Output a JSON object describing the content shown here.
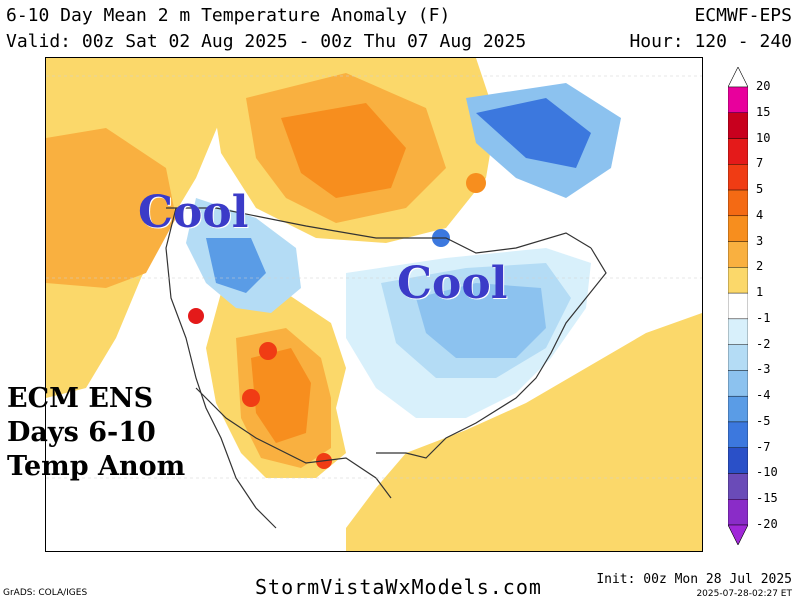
{
  "header": {
    "title": "6-10 Day Mean 2 m Temperature Anomaly (F)",
    "valid": "Valid: 00z Sat 02 Aug 2025 - 00z Thu 07 Aug 2025",
    "model": "ECMWF-EPS",
    "hour": "Hour: 120 - 240"
  },
  "annotations": {
    "cool_west": "Cool",
    "cool_east": "Cool",
    "label_line1": "ECM ENS",
    "label_line2": "Days 6-10",
    "label_line3": "Temp Anom"
  },
  "legend": {
    "labels": [
      "20",
      "15",
      "10",
      "7",
      "5",
      "4",
      "3",
      "2",
      "1",
      "-1",
      "-2",
      "-3",
      "-4",
      "-5",
      "-7",
      "-10",
      "-15",
      "-20"
    ],
    "colors": [
      "#e8009c",
      "#c8001e",
      "#e41a1a",
      "#f03c14",
      "#f46a14",
      "#f78e1e",
      "#f9b040",
      "#fbd86a",
      "#ffffff",
      "#d8f0fb",
      "#b4dcf5",
      "#8cc2ef",
      "#5a9ce6",
      "#3c78de",
      "#2a50c8",
      "#6a4bb8",
      "#8a2cc8"
    ],
    "top_arrow_color": "#ffffff",
    "bottom_arrow_color": "#a028d8"
  },
  "footer": {
    "grads": "GrADS: COLA/IGES",
    "site": "StormVistaWxModels.com",
    "init": "Init: 00z Mon 28 Jul 2025",
    "stamp": "2025-07-28-02:27 ET"
  }
}
